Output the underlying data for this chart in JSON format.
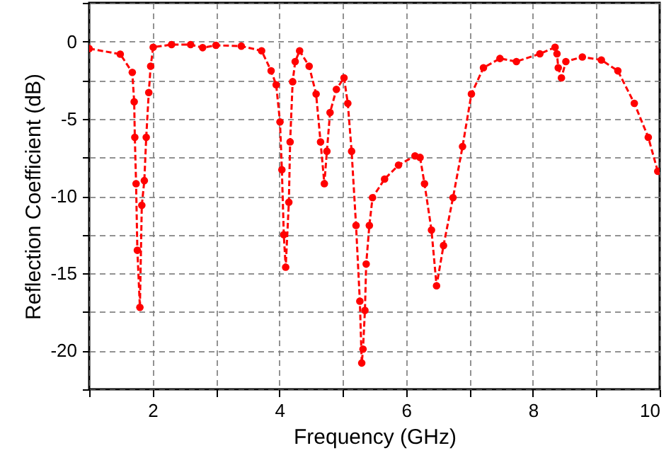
{
  "chart_data": {
    "type": "line",
    "xlabel": "Frequency (GHz)",
    "ylabel": "Reflection Coefficient (dB)",
    "xlim": [
      1,
      10
    ],
    "ylim": [
      -22.5,
      2.5
    ],
    "xticks": [
      {
        "value": 1,
        "label": null
      },
      2,
      {
        "value": 3,
        "label": null
      },
      4,
      {
        "value": 5,
        "label": null
      },
      6,
      {
        "value": 7,
        "label": null
      },
      8,
      {
        "value": 9,
        "label": null
      },
      10
    ],
    "yticks": [
      {
        "value": -22.5,
        "label": null
      },
      -20,
      {
        "value": -17.5,
        "label": null
      },
      -15,
      {
        "value": -12.5,
        "label": null
      },
      -10,
      {
        "value": -7.5,
        "label": null
      },
      -5,
      {
        "value": -2.5,
        "label": null
      },
      0,
      {
        "value": 2.5,
        "label": null
      }
    ],
    "grid": true,
    "marker": "circle",
    "line_style": "dashed",
    "series": [
      {
        "color": "#ff0000",
        "x": [
          1.0,
          1.49,
          1.68,
          1.71,
          1.72,
          1.74,
          1.76,
          1.8,
          1.83,
          1.87,
          1.9,
          1.94,
          1.97,
          2.01,
          2.3,
          2.6,
          2.79,
          3.0,
          3.4,
          3.72,
          3.87,
          3.95,
          4.01,
          4.04,
          4.07,
          4.1,
          4.15,
          4.17,
          4.21,
          4.25,
          4.32,
          4.47,
          4.58,
          4.65,
          4.71,
          4.75,
          4.8,
          4.9,
          5.02,
          5.08,
          5.14,
          5.21,
          5.27,
          5.3,
          5.32,
          5.35,
          5.37,
          5.42,
          5.47,
          5.66,
          5.88,
          6.14,
          6.22,
          6.29,
          6.4,
          6.48,
          6.59,
          6.74,
          6.89,
          7.03,
          7.22,
          7.48,
          7.74,
          8.11,
          8.35,
          8.38,
          8.4,
          8.45,
          8.52,
          8.78,
          9.08,
          9.34,
          9.6,
          9.82,
          9.97
        ],
        "values": [
          -0.46,
          -0.82,
          -2.0,
          -3.9,
          -6.2,
          -9.2,
          -13.5,
          -17.2,
          -10.6,
          -9.0,
          -6.2,
          -3.3,
          -1.6,
          -0.37,
          -0.2,
          -0.2,
          -0.4,
          -0.25,
          -0.3,
          -0.6,
          -1.9,
          -2.8,
          -5.2,
          -8.3,
          -12.5,
          -14.6,
          -10.4,
          -6.5,
          -2.6,
          -1.3,
          -0.6,
          -1.6,
          -3.4,
          -6.5,
          -9.2,
          -7.1,
          -4.6,
          -3.1,
          -2.35,
          -4.0,
          -7.1,
          -11.9,
          -16.8,
          -20.8,
          -19.9,
          -17.4,
          -14.4,
          -11.9,
          -10.1,
          -8.9,
          -8.0,
          -7.4,
          -7.5,
          -9.2,
          -12.2,
          -15.8,
          -13.2,
          -10.1,
          -6.8,
          -3.4,
          -1.7,
          -1.1,
          -1.3,
          -0.8,
          -0.37,
          -0.8,
          -1.7,
          -2.35,
          -1.3,
          -1.0,
          -1.2,
          -1.9,
          -4.0,
          -6.2,
          -8.4
        ]
      }
    ]
  }
}
